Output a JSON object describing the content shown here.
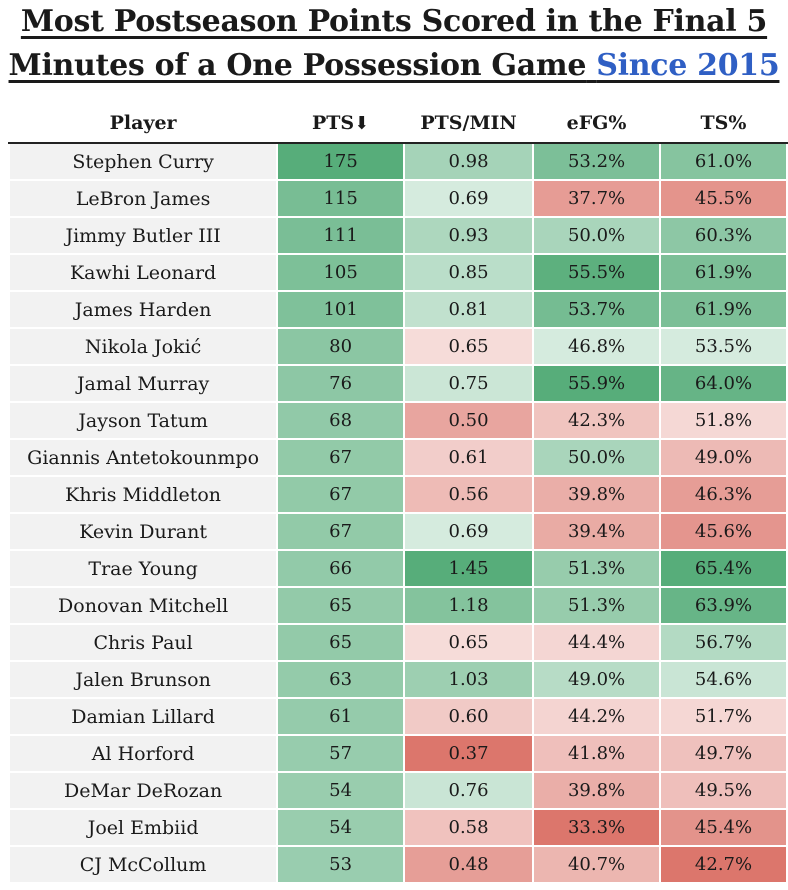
{
  "title": {
    "line1": "Most Postseason Points Scored in the Final 5",
    "line2": "Minutes of a One Possession Game",
    "accent": "Since 2015"
  },
  "colors": {
    "high": "#57ad7a",
    "mid": "#ffffff",
    "low": "#dc766c",
    "accent": "#2f5fc4"
  },
  "chart_data": {
    "type": "table",
    "columns": [
      "Player",
      "PTS",
      "PTS/MIN",
      "eFG%",
      "TS%"
    ],
    "sort_indicator": "⬇",
    "rows": [
      {
        "player": "Stephen Curry",
        "pts": "175",
        "pts_min": "0.98",
        "efg": "53.2%",
        "ts": "61.0%"
      },
      {
        "player": "LeBron James",
        "pts": "115",
        "pts_min": "0.69",
        "efg": "37.7%",
        "ts": "45.5%"
      },
      {
        "player": "Jimmy Butler III",
        "pts": "111",
        "pts_min": "0.93",
        "efg": "50.0%",
        "ts": "60.3%"
      },
      {
        "player": "Kawhi Leonard",
        "pts": "105",
        "pts_min": "0.85",
        "efg": "55.5%",
        "ts": "61.9%"
      },
      {
        "player": "James Harden",
        "pts": "101",
        "pts_min": "0.81",
        "efg": "53.7%",
        "ts": "61.9%"
      },
      {
        "player": "Nikola Jokić",
        "pts": "80",
        "pts_min": "0.65",
        "efg": "46.8%",
        "ts": "53.5%"
      },
      {
        "player": "Jamal Murray",
        "pts": "76",
        "pts_min": "0.75",
        "efg": "55.9%",
        "ts": "64.0%"
      },
      {
        "player": "Jayson Tatum",
        "pts": "68",
        "pts_min": "0.50",
        "efg": "42.3%",
        "ts": "51.8%"
      },
      {
        "player": "Giannis Antetokounmpo",
        "pts": "67",
        "pts_min": "0.61",
        "efg": "50.0%",
        "ts": "49.0%"
      },
      {
        "player": "Khris Middleton",
        "pts": "67",
        "pts_min": "0.56",
        "efg": "39.8%",
        "ts": "46.3%"
      },
      {
        "player": "Kevin Durant",
        "pts": "67",
        "pts_min": "0.69",
        "efg": "39.4%",
        "ts": "45.6%"
      },
      {
        "player": "Trae Young",
        "pts": "66",
        "pts_min": "1.45",
        "efg": "51.3%",
        "ts": "65.4%"
      },
      {
        "player": "Donovan Mitchell",
        "pts": "65",
        "pts_min": "1.18",
        "efg": "51.3%",
        "ts": "63.9%"
      },
      {
        "player": "Chris Paul",
        "pts": "65",
        "pts_min": "0.65",
        "efg": "44.4%",
        "ts": "56.7%"
      },
      {
        "player": "Jalen Brunson",
        "pts": "63",
        "pts_min": "1.03",
        "efg": "49.0%",
        "ts": "54.6%"
      },
      {
        "player": "Damian Lillard",
        "pts": "61",
        "pts_min": "0.60",
        "efg": "44.2%",
        "ts": "51.7%"
      },
      {
        "player": "Al Horford",
        "pts": "57",
        "pts_min": "0.37",
        "efg": "41.8%",
        "ts": "49.7%"
      },
      {
        "player": "DeMar DeRozan",
        "pts": "54",
        "pts_min": "0.76",
        "efg": "39.8%",
        "ts": "49.5%"
      },
      {
        "player": "Joel Embiid",
        "pts": "54",
        "pts_min": "0.58",
        "efg": "33.3%",
        "ts": "45.4%"
      },
      {
        "player": "CJ McCollum",
        "pts": "53",
        "pts_min": "0.48",
        "efg": "40.7%",
        "ts": "42.7%"
      }
    ]
  }
}
